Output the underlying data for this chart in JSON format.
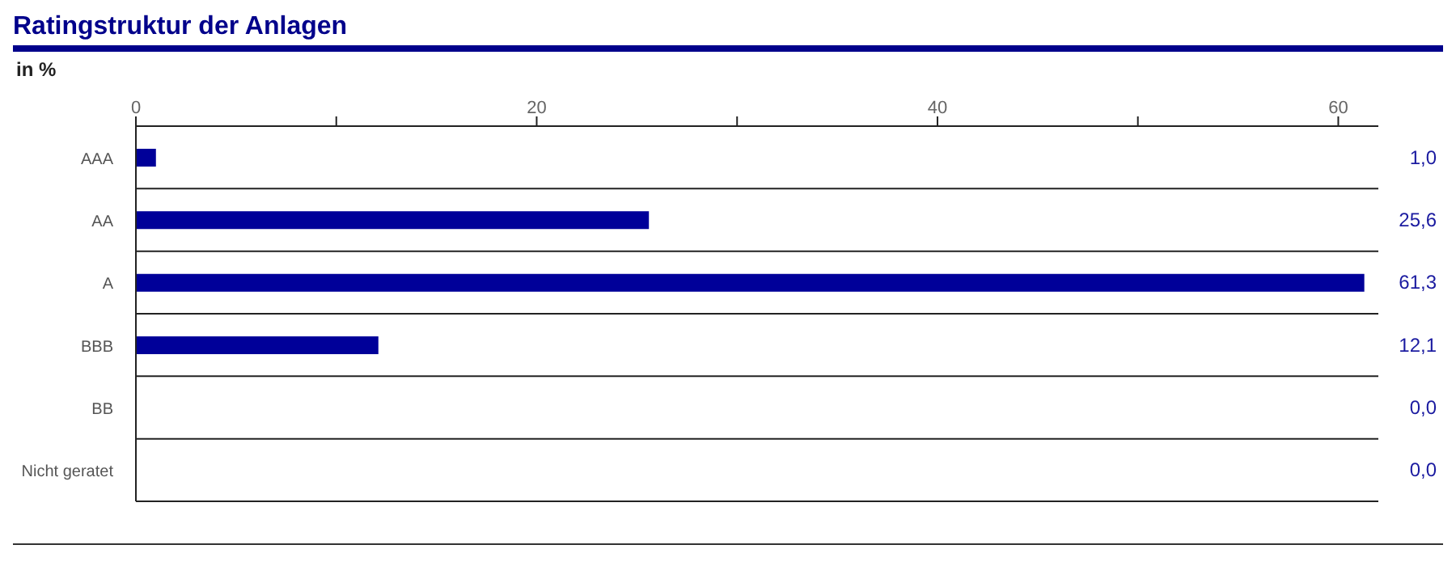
{
  "chart_data": {
    "type": "bar",
    "orientation": "horizontal",
    "title": "Ratingstruktur der Anlagen",
    "xlabel": "in %",
    "categories": [
      "AAA",
      "AA",
      "A",
      "BBB",
      "BB",
      "Nicht geratet"
    ],
    "values": [
      1.0,
      25.6,
      61.3,
      12.1,
      0.0,
      0.0
    ],
    "value_labels": [
      "1,0",
      "25,6",
      "61,3",
      "12,1",
      "0,0",
      "0,0"
    ],
    "color": "#000099",
    "xlim": [
      0,
      62
    ],
    "xticks": [
      0,
      {
        "value": 10,
        "label": null
      },
      20,
      {
        "value": 30,
        "label": null
      },
      40,
      {
        "value": 50,
        "label": null
      },
      60
    ],
    "grid": "y"
  }
}
